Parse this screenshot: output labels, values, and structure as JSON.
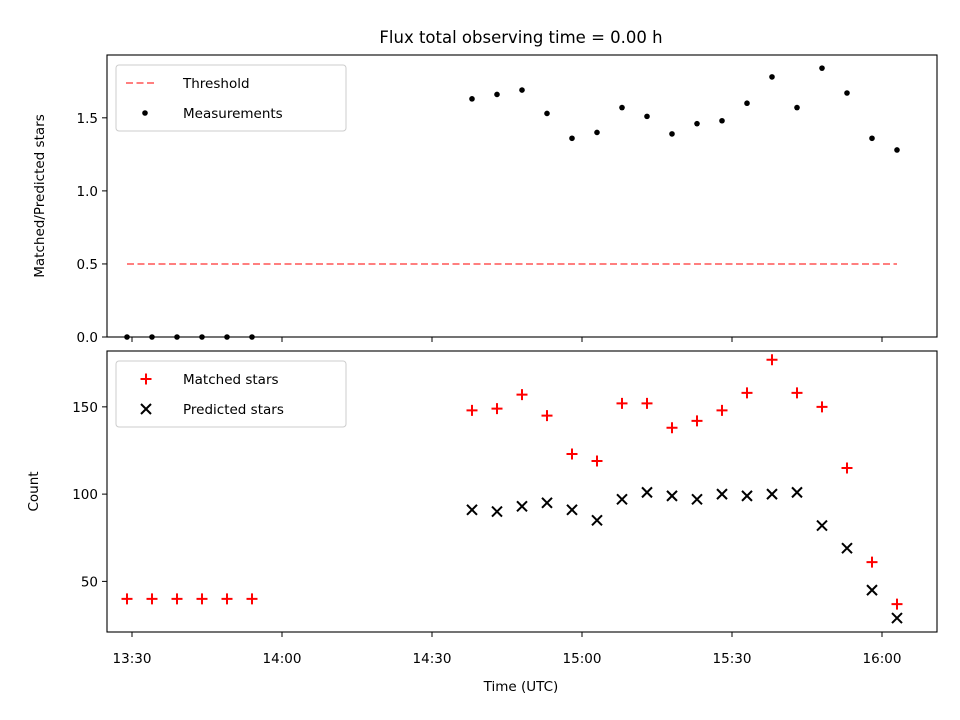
{
  "chart_data": {
    "title": "Flux total observing time = 0.00 h",
    "xlabel": "Time (UTC)",
    "x_tick_labels": [
      "13:30",
      "14:00",
      "14:30",
      "15:00",
      "15:30",
      "16:00"
    ],
    "x_ticks": [
      "13:30",
      "14:00",
      "14:30",
      "15:00",
      "15:30",
      "16:00"
    ],
    "x_range": [
      "13:25",
      "16:11"
    ],
    "time": [
      "13:29",
      "13:34",
      "13:39",
      "13:44",
      "13:49",
      "13:54",
      "14:38",
      "14:43",
      "14:48",
      "14:53",
      "14:58",
      "15:03",
      "15:08",
      "15:13",
      "15:18",
      "15:23",
      "15:28",
      "15:33",
      "15:38",
      "15:43",
      "15:48",
      "15:53",
      "15:58",
      "16:03"
    ],
    "panels": [
      {
        "type": "line+scatter",
        "ylabel": "Matched/Predicted stars",
        "ylim": [
          0,
          1.93
        ],
        "y_ticks": [
          "0.0",
          "0.5",
          "1.0",
          "1.5"
        ],
        "legend_position": "top-left",
        "grid": false,
        "series": [
          {
            "name": "Threshold",
            "kind": "dashed-line",
            "color": "#ff7f7f",
            "x": [
              "13:29",
              "16:03"
            ],
            "values": [
              0.5,
              0.5
            ]
          },
          {
            "name": "Measurements",
            "kind": "scatter",
            "marker": "dot",
            "color": "#000000",
            "values": [
              0,
              0,
              0,
              0,
              0,
              0,
              1.63,
              1.66,
              1.69,
              1.53,
              1.36,
              1.4,
              1.57,
              1.51,
              1.39,
              1.46,
              1.48,
              1.6,
              1.78,
              1.57,
              1.84,
              1.67,
              1.36,
              1.28
            ]
          }
        ]
      },
      {
        "type": "scatter",
        "ylabel": "Count",
        "ylim": [
          21,
          182
        ],
        "y_ticks": [
          "50",
          "100",
          "150"
        ],
        "legend_position": "top-left",
        "grid": false,
        "series": [
          {
            "name": "Matched stars",
            "marker": "plus",
            "color": "#ff0000",
            "values": [
              40,
              40,
              40,
              40,
              40,
              40,
              148,
              149,
              157,
              145,
              123,
              119,
              152,
              152,
              138,
              142,
              148,
              158,
              177,
              158,
              150,
              115,
              61,
              37
            ]
          },
          {
            "name": "Predicted stars",
            "marker": "x",
            "color": "#000000",
            "values": [
              null,
              null,
              null,
              null,
              null,
              null,
              91,
              90,
              93,
              95,
              91,
              85,
              97,
              101,
              99,
              97,
              100,
              99,
              100,
              101,
              82,
              69,
              45,
              29
            ]
          }
        ]
      }
    ]
  }
}
